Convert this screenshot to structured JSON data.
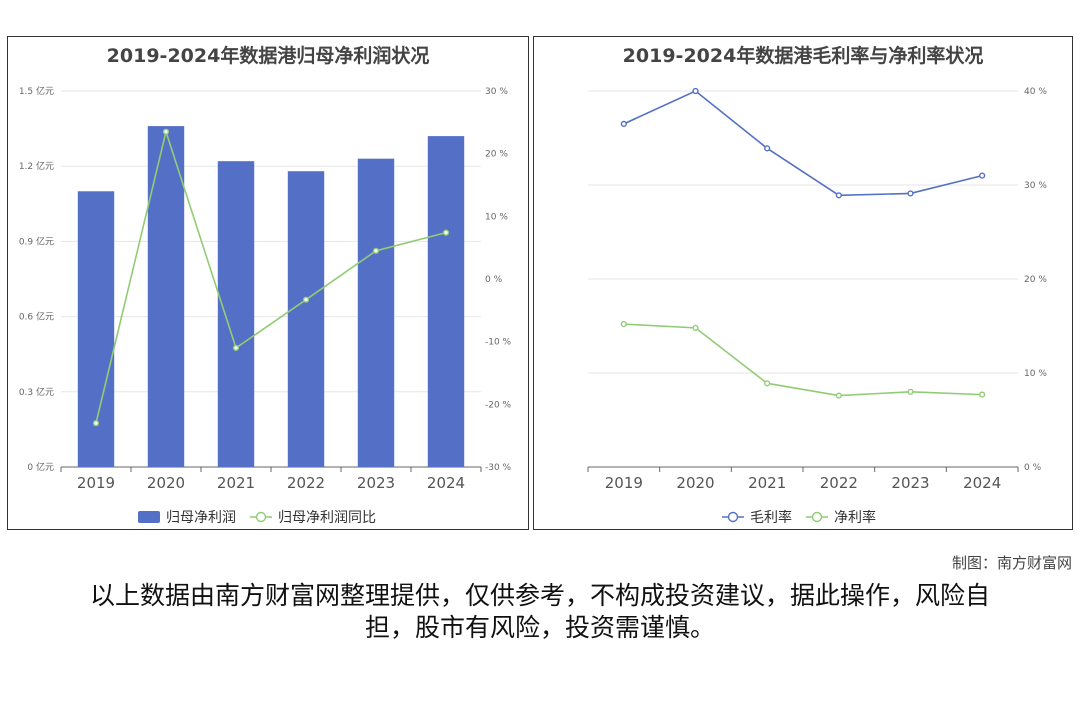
{
  "colors": {
    "bar": "#5470c6",
    "net_margin_line": "#91cc75",
    "gross_margin_line": "#5470c6",
    "axis": "#666666",
    "grid": "#e6e6e6"
  },
  "chart_data": [
    {
      "type": "bar",
      "title": "2019-2024年数据港归母净利润状况",
      "categories": [
        "2019",
        "2020",
        "2021",
        "2022",
        "2023",
        "2024"
      ],
      "y_left": {
        "ylim": [
          0,
          1.5
        ],
        "ticks": [
          0,
          0.3,
          0.6,
          0.9,
          1.2,
          1.5
        ],
        "tick_labels": [
          "0 亿元",
          "0.3 亿元",
          "0.6 亿元",
          "0.9 亿元",
          "1.2 亿元",
          "1.5 亿元"
        ]
      },
      "y_right": {
        "ylim": [
          -30,
          30
        ],
        "ticks": [
          -30,
          -20,
          -10,
          0,
          10,
          20,
          30
        ],
        "tick_labels": [
          "-30 %",
          "-20 %",
          "-10 %",
          "0 %",
          "10 %",
          "20 %",
          "30 %"
        ]
      },
      "grid": true,
      "legend_position": "bottom-center",
      "series": [
        {
          "name": "归母净利润",
          "kind": "bar",
          "axis": "left",
          "values": [
            1.1,
            1.36,
            1.22,
            1.18,
            1.23,
            1.32
          ]
        },
        {
          "name": "归母净利润同比",
          "kind": "line",
          "axis": "right",
          "values": [
            -23.0,
            23.5,
            -11.0,
            -3.3,
            4.5,
            7.4
          ]
        }
      ]
    },
    {
      "type": "line",
      "title": "2019-2024年数据港毛利率与净利率状况",
      "categories": [
        "2019",
        "2020",
        "2021",
        "2022",
        "2023",
        "2024"
      ],
      "y_right": {
        "ylim": [
          0,
          40
        ],
        "ticks": [
          0,
          10,
          20,
          30,
          40
        ],
        "tick_labels": [
          "0 %",
          "10 %",
          "20 %",
          "30 %",
          "40 %"
        ]
      },
      "grid": true,
      "legend_position": "bottom-center",
      "series": [
        {
          "name": "毛利率",
          "kind": "line",
          "axis": "right",
          "values": [
            36.5,
            40.0,
            33.9,
            28.9,
            29.1,
            31.0
          ]
        },
        {
          "name": "净利率",
          "kind": "line",
          "axis": "right",
          "values": [
            15.2,
            14.8,
            8.9,
            7.6,
            8.0,
            7.7
          ]
        }
      ]
    }
  ],
  "credit": "制图：南方财富网",
  "disclaimer": "以上数据由南方财富网整理提供，仅供参考，不构成投资建议，据此操作，风险自担，股市有风险，投资需谨慎。"
}
